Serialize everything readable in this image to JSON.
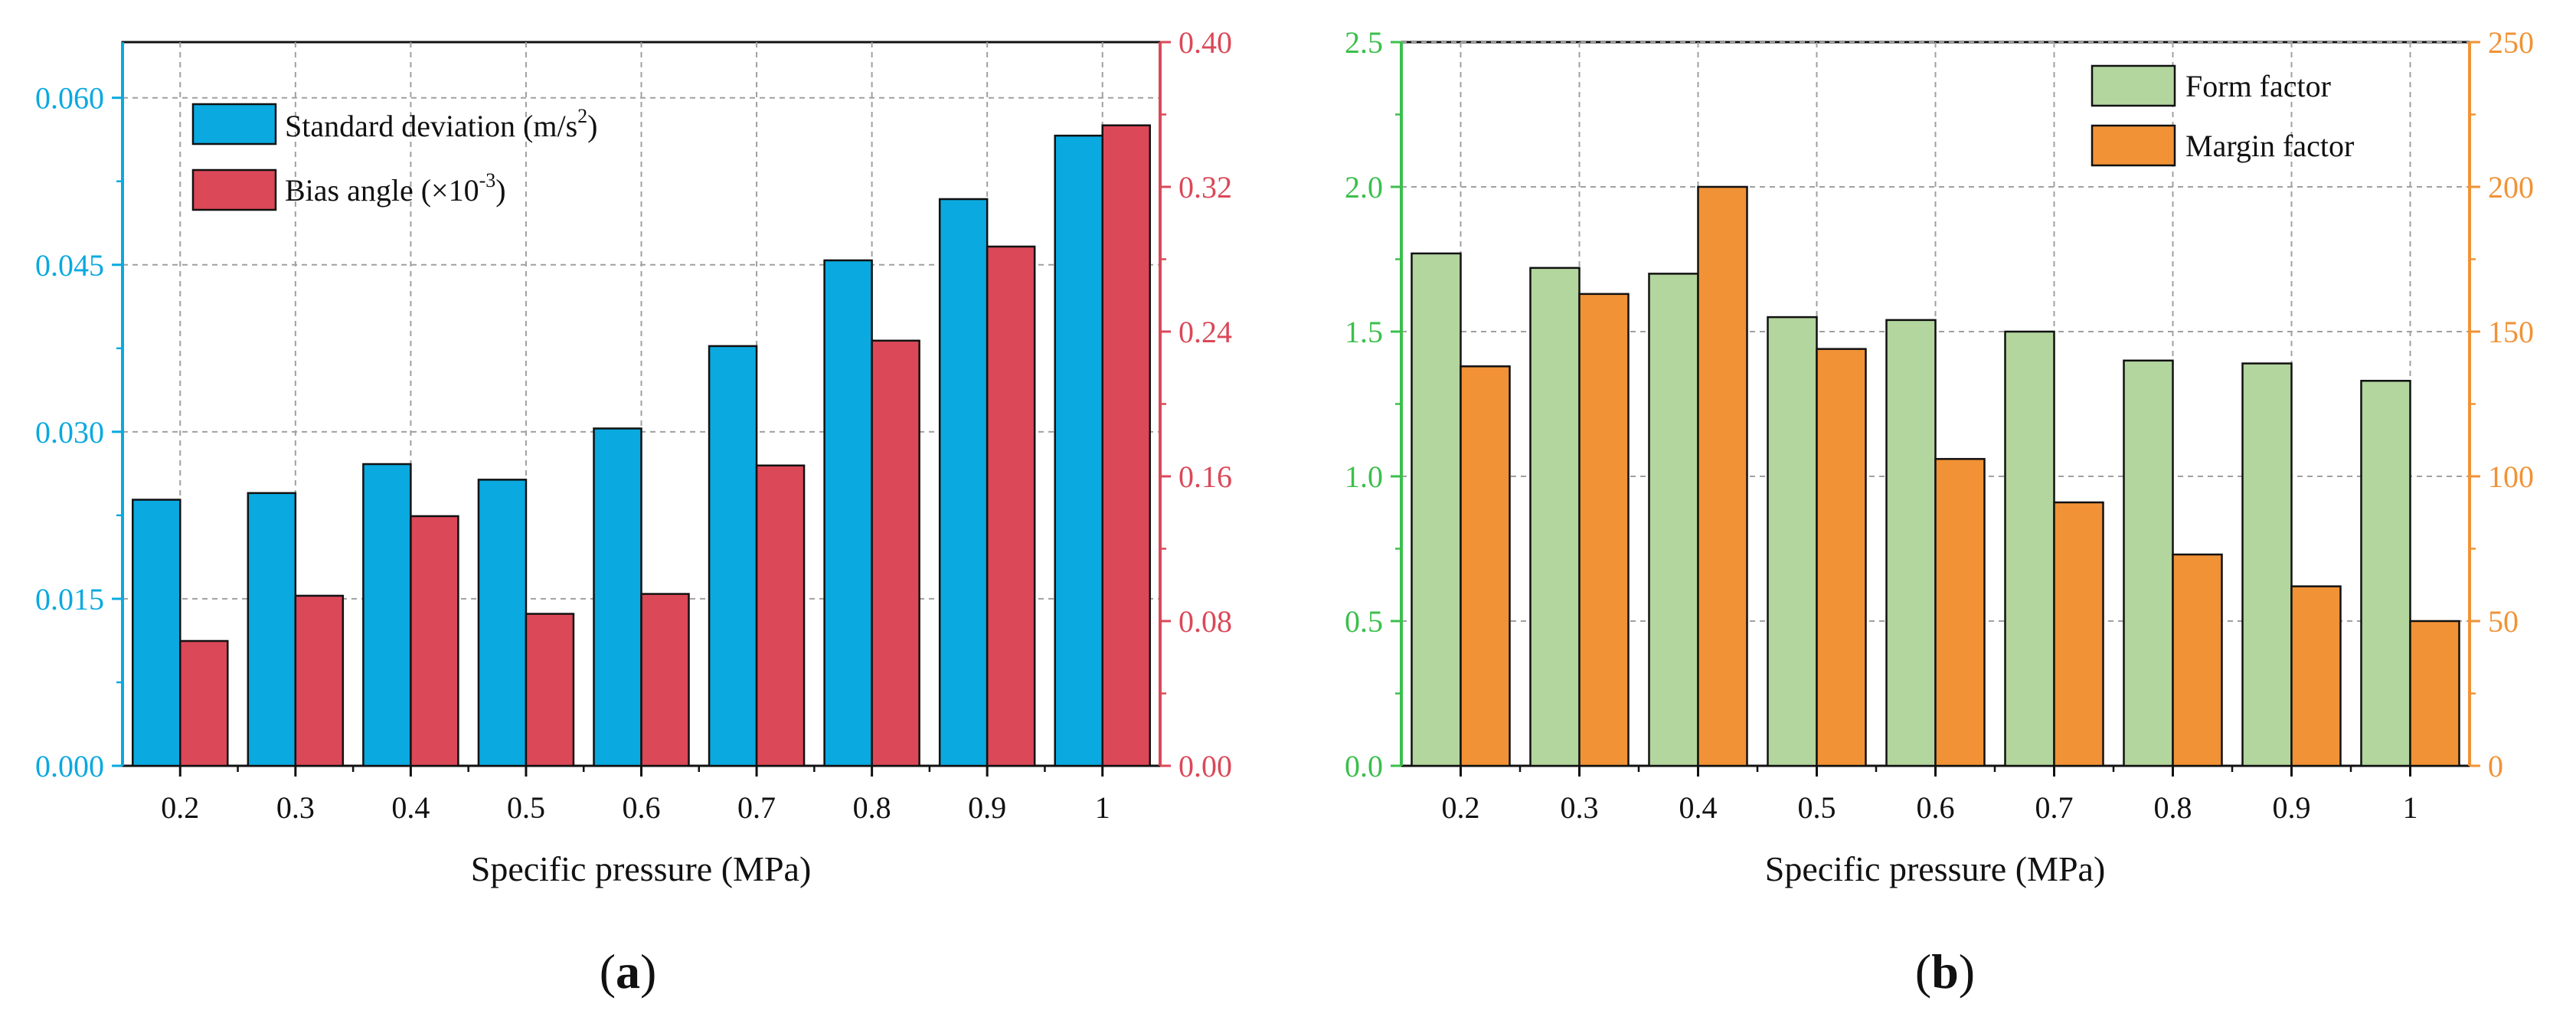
{
  "colors": {
    "blue": "#0aa9df",
    "red": "#db4858",
    "green_bar": "#b3d59e",
    "orange_bar": "#f19236",
    "green_axis": "#3bbf4c",
    "orange_axis": "#f19236",
    "grid": "#a0a0a0",
    "black": "#111111"
  },
  "panel_a": {
    "label_open": "(",
    "label_letter": "a",
    "label_close": ")"
  },
  "panel_b": {
    "label_open": "(",
    "label_letter": "b",
    "label_close": ")"
  },
  "chart_data": [
    {
      "type": "bar",
      "panel": "a",
      "xlabel": "Specific pressure (MPa)",
      "categories": [
        "0.2",
        "0.3",
        "0.4",
        "0.5",
        "0.6",
        "0.7",
        "0.8",
        "0.9",
        "1"
      ],
      "left_axis": {
        "ylim": [
          0,
          0.065
        ],
        "ticks": [
          "0.000",
          "0.015",
          "0.030",
          "0.045",
          "0.060"
        ],
        "tick_values": [
          0,
          0.015,
          0.03,
          0.045,
          0.06
        ]
      },
      "right_axis": {
        "ylim": [
          0,
          0.4
        ],
        "ticks": [
          "0.00",
          "0.08",
          "0.16",
          "0.24",
          "0.32",
          "0.40"
        ],
        "tick_values": [
          0,
          0.08,
          0.16,
          0.24,
          0.32,
          0.4
        ]
      },
      "series": [
        {
          "name": "Standard deviation",
          "legend_main": "Standard deviation (m/s",
          "legend_sup": "2",
          "legend_end": ")",
          "axis": "left",
          "values": [
            0.0239,
            0.0245,
            0.0271,
            0.0257,
            0.0303,
            0.0377,
            0.0454,
            0.0509,
            0.0566
          ]
        },
        {
          "name": "Bias angle",
          "legend_main": "Bias angle (×10",
          "legend_sup": "-3",
          "legend_end": ")",
          "axis": "right",
          "values": [
            0.069,
            0.094,
            0.138,
            0.084,
            0.095,
            0.166,
            0.235,
            0.287,
            0.354
          ]
        }
      ],
      "grid": true,
      "legend_position": "top-left"
    },
    {
      "type": "bar",
      "panel": "b",
      "xlabel": "Specific pressure (MPa)",
      "categories": [
        "0.2",
        "0.3",
        "0.4",
        "0.5",
        "0.6",
        "0.7",
        "0.8",
        "0.9",
        "1"
      ],
      "left_axis": {
        "ylim": [
          0,
          2.5
        ],
        "ticks": [
          "0.0",
          "0.5",
          "1.0",
          "1.5",
          "2.0",
          "2.5"
        ],
        "tick_values": [
          0,
          0.5,
          1.0,
          1.5,
          2.0,
          2.5
        ]
      },
      "right_axis": {
        "ylim": [
          0,
          250
        ],
        "ticks": [
          "0",
          "50",
          "100",
          "150",
          "200",
          "250"
        ],
        "tick_values": [
          0,
          50,
          100,
          150,
          200,
          250
        ]
      },
      "series": [
        {
          "name": "Form factor",
          "axis": "left",
          "values": [
            1.77,
            1.72,
            1.7,
            1.55,
            1.54,
            1.5,
            1.4,
            1.39,
            1.33
          ]
        },
        {
          "name": "Margin factor",
          "axis": "right",
          "values": [
            138,
            163,
            200,
            144,
            106,
            91,
            73,
            62,
            50
          ]
        }
      ],
      "grid": true,
      "legend_position": "top-right"
    }
  ]
}
